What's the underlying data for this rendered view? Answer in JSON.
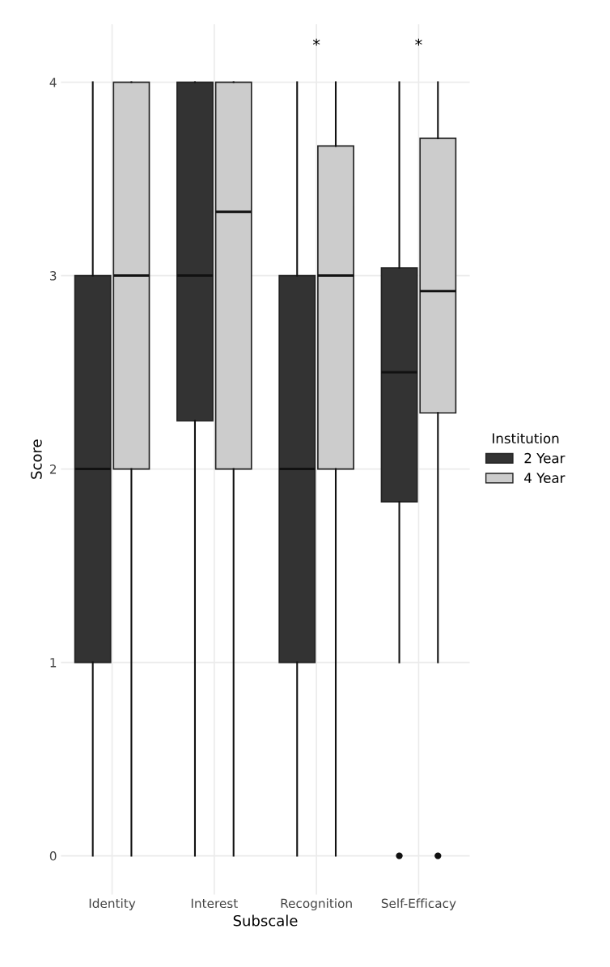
{
  "chart_data": {
    "type": "box",
    "xlabel": "Subscale",
    "ylabel": "Score",
    "legend_title": "Institution",
    "categories": [
      "Identity",
      "Interest",
      "Recognition",
      "Self-Efficacy"
    ],
    "series": [
      {
        "name": "2 Year",
        "color": "#333333",
        "boxes": [
          {
            "low": 0,
            "q1": 1,
            "median": 2,
            "q3": 3,
            "high": 4
          },
          {
            "low": 0,
            "q1": 2.25,
            "median": 3,
            "q3": 4,
            "high": 4
          },
          {
            "low": 0,
            "q1": 1,
            "median": 2,
            "q3": 3,
            "high": 4
          },
          {
            "low": 1,
            "q1": 1.83,
            "median": 2.5,
            "q3": 3.04,
            "high": 4,
            "outliers": [
              0
            ]
          }
        ]
      },
      {
        "name": "4 Year",
        "color": "#cccccc",
        "boxes": [
          {
            "low": 0,
            "q1": 2,
            "median": 3,
            "q3": 4,
            "high": 4
          },
          {
            "low": 0,
            "q1": 2,
            "median": 3.33,
            "q3": 4,
            "high": 4
          },
          {
            "low": 0,
            "q1": 2,
            "median": 3,
            "q3": 3.67,
            "high": 4
          },
          {
            "low": 1,
            "q1": 2.29,
            "median": 2.92,
            "q3": 3.71,
            "high": 4,
            "outliers": [
              0
            ]
          }
        ]
      }
    ],
    "annotations": [
      "*",
      "*"
    ],
    "ylim": [
      -0.2,
      4.3
    ],
    "yticks": [
      0,
      1,
      2,
      3,
      4
    ],
    "grid": true,
    "legend": "right"
  }
}
